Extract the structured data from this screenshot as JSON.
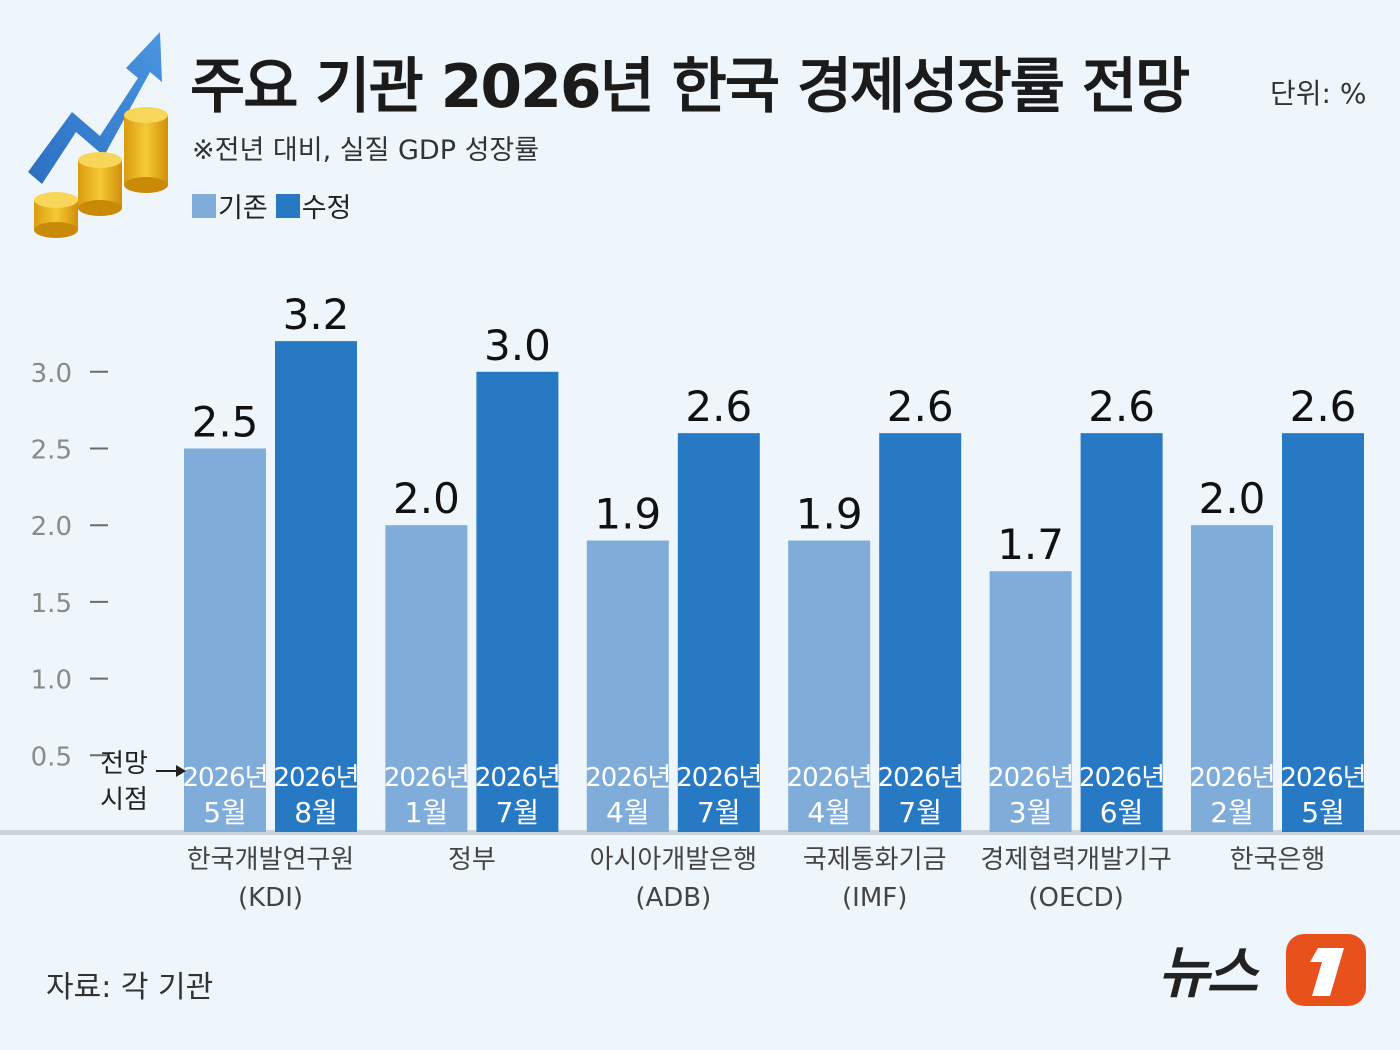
{
  "title": "주요 기관 2026년 한국 경제성장률 전망",
  "unit": "단위: %",
  "subtitle": "※전년 대비, 실질 GDP 성장률",
  "legend": [
    {
      "label": "기존",
      "color": "#80acd9"
    },
    {
      "label": "수정",
      "color": "#2879c4"
    }
  ],
  "forecast_point_label": [
    "전망",
    "시점"
  ],
  "source": "자료: 각 기관",
  "logo_text": "뉴스1",
  "colors": {
    "background": "#eef6fb",
    "existing": "#80acd9",
    "revised": "#2879c4",
    "logo_accent": "#e8501c"
  },
  "chart_data": {
    "type": "bar",
    "ylim": [
      0,
      3.3
    ],
    "yticks": [
      "0.5",
      "1.0",
      "1.5",
      "2.0",
      "2.5",
      "3.0"
    ],
    "grid": false,
    "legend_position": "top-left",
    "categories": [
      [
        "한국개발연구원",
        "(KDI)"
      ],
      [
        "정부"
      ],
      [
        "아시아개발은행",
        "(ADB)"
      ],
      [
        "국제통화기금",
        "(IMF)"
      ],
      [
        "경제협력개발기구",
        "(OECD)"
      ],
      [
        "한국은행"
      ]
    ],
    "series": [
      {
        "name": "기존",
        "values": [
          2.5,
          2.0,
          1.9,
          1.9,
          1.7,
          2.0
        ],
        "value_labels": [
          "2.5",
          "2.0",
          "1.9",
          "1.9",
          "1.7",
          "2.0"
        ],
        "dates": [
          [
            "2026년",
            "5월"
          ],
          [
            "2026년",
            "1월"
          ],
          [
            "2026년",
            "4월"
          ],
          [
            "2026년",
            "4월"
          ],
          [
            "2026년",
            "3월"
          ],
          [
            "2026년",
            "2월"
          ]
        ]
      },
      {
        "name": "수정",
        "values": [
          3.2,
          3.0,
          2.6,
          2.6,
          2.6,
          2.6
        ],
        "value_labels": [
          "3.2",
          "3.0",
          "2.6",
          "2.6",
          "2.6",
          "2.6"
        ],
        "dates": [
          [
            "2026년",
            "8월"
          ],
          [
            "2026년",
            "7월"
          ],
          [
            "2026년",
            "7월"
          ],
          [
            "2026년",
            "7월"
          ],
          [
            "2026년",
            "6월"
          ],
          [
            "2026년",
            "5월"
          ]
        ]
      }
    ]
  }
}
